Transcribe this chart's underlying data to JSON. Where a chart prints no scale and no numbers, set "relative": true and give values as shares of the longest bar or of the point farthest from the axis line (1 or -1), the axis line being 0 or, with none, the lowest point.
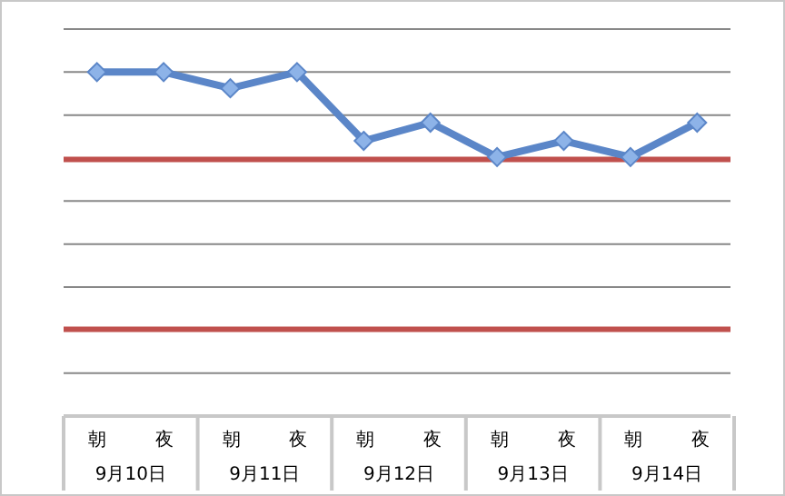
{
  "chart_data": {
    "type": "line",
    "relative": true,
    "categories": [
      "朝",
      "夜",
      "朝",
      "夜",
      "朝",
      "夜",
      "朝",
      "夜",
      "朝",
      "夜"
    ],
    "series": [
      {
        "color": "#5b86c8",
        "values": [
          1,
          1,
          0.953,
          1,
          0.8,
          0.853,
          0.753,
          0.8,
          0.753,
          0.853
        ]
      }
    ],
    "ref_lines": [
      {
        "axis": "y",
        "value": 0.746,
        "color": "#c0504d"
      },
      {
        "axis": "y",
        "value": 0.252,
        "color": "#c0504d"
      }
    ],
    "annotations": [
      "9月10日",
      "9月11日",
      "9月12日",
      "9月13日",
      "9月14日"
    ],
    "grid": "y",
    "marker": "diamond",
    "line_style": "solid"
  }
}
